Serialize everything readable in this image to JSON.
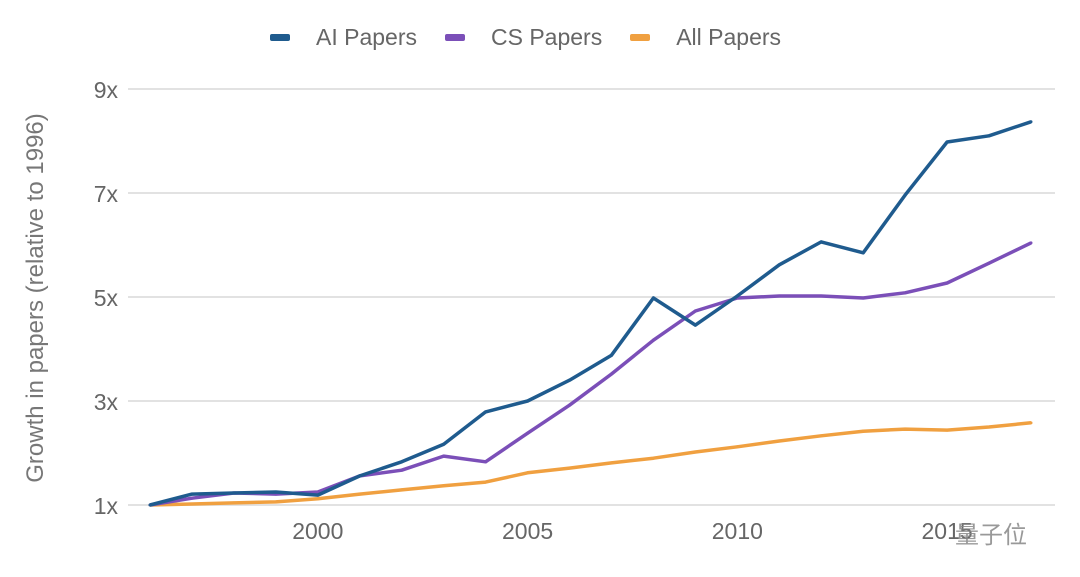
{
  "chart_data": {
    "type": "line",
    "title": "",
    "xlabel": "",
    "ylabel": "Growth in papers (relative to 1996)",
    "x": [
      1996,
      1997,
      1998,
      1999,
      2000,
      2001,
      2002,
      2003,
      2004,
      2005,
      2006,
      2007,
      2008,
      2009,
      2010,
      2011,
      2012,
      2013,
      2014,
      2015,
      2016,
      2017
    ],
    "x_ticks": [
      2000,
      2005,
      2010,
      2015
    ],
    "x_tick_labels": [
      "2000",
      "2005",
      "2010",
      "2015"
    ],
    "y_ticks": [
      1,
      3,
      5,
      7,
      9
    ],
    "y_tick_labels": [
      "1x",
      "3x",
      "5x",
      "7x",
      "9x"
    ],
    "ylim": [
      1,
      9
    ],
    "grid": "horizontal",
    "legend_position": "top",
    "series": [
      {
        "name": "AI Papers",
        "color": "#1f5b8e",
        "values": [
          1.0,
          1.21,
          1.23,
          1.25,
          1.19,
          1.56,
          1.83,
          2.17,
          2.79,
          3.0,
          3.4,
          3.88,
          4.98,
          4.46,
          5.02,
          5.62,
          6.06,
          5.85,
          6.96,
          7.98,
          8.1,
          8.37
        ]
      },
      {
        "name": "CS Papers",
        "color": "#7b4fb8",
        "values": [
          1.0,
          1.13,
          1.23,
          1.21,
          1.25,
          1.56,
          1.67,
          1.94,
          1.83,
          2.38,
          2.92,
          3.52,
          4.17,
          4.73,
          4.98,
          5.02,
          5.02,
          4.98,
          5.08,
          5.27,
          5.65,
          6.04
        ]
      },
      {
        "name": "All Papers",
        "color": "#f0a040",
        "values": [
          1.0,
          1.02,
          1.04,
          1.06,
          1.12,
          1.21,
          1.29,
          1.37,
          1.44,
          1.62,
          1.71,
          1.81,
          1.9,
          2.02,
          2.12,
          2.23,
          2.33,
          2.42,
          2.46,
          2.44,
          2.5,
          2.58
        ]
      }
    ]
  },
  "watermark": "量子位"
}
